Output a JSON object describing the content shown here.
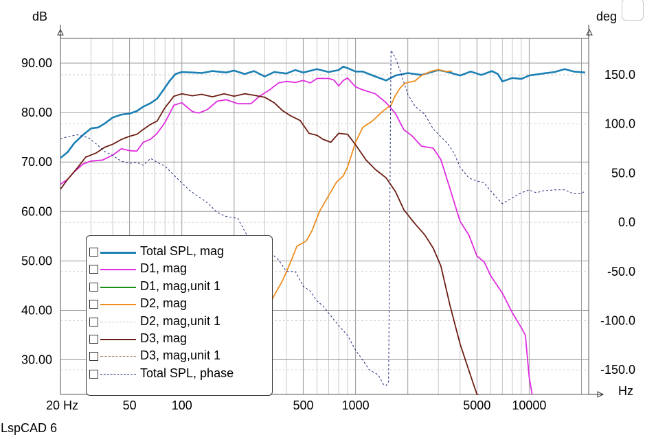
{
  "window": {
    "footer_text": "LspCAD 6"
  },
  "chart_data": {
    "type": "line",
    "xscale": "log",
    "xlim": [
      20,
      22000
    ],
    "ylim_left": [
      23,
      95
    ],
    "ylim_right": [
      -175,
      187
    ],
    "left_unit": "dB",
    "right_unit": "deg",
    "x_unit": "Hz",
    "x_ticks": [
      {
        "value": 20,
        "label": "20 Hz"
      },
      {
        "value": 50,
        "label": "50"
      },
      {
        "value": 100,
        "label": "100"
      },
      {
        "value": 500,
        "label": "500"
      },
      {
        "value": 1000,
        "label": "1000"
      },
      {
        "value": 5000,
        "label": "5000"
      },
      {
        "value": 10000,
        "label": "10000"
      }
    ],
    "y_ticks_left": [
      {
        "value": 90,
        "label": "90.00"
      },
      {
        "value": 80,
        "label": "80.00"
      },
      {
        "value": 70,
        "label": "70.00"
      },
      {
        "value": 60,
        "label": "60.00"
      },
      {
        "value": 50,
        "label": "50.00"
      },
      {
        "value": 40,
        "label": "40.00"
      },
      {
        "value": 30,
        "label": "30.00"
      }
    ],
    "y_ticks_right": [
      {
        "value": 150,
        "label": "150.0"
      },
      {
        "value": 100,
        "label": "100.0"
      },
      {
        "value": 50,
        "label": "50.0"
      },
      {
        "value": 0,
        "label": "0.0"
      },
      {
        "value": -50,
        "label": "-50.0"
      },
      {
        "value": -100,
        "label": "-100.0"
      },
      {
        "value": -150,
        "label": "-150.0"
      }
    ],
    "grid": true,
    "legend_position": "bottom-left",
    "series": [
      {
        "name": "Total SPL, mag",
        "color": "#1b7fb3",
        "style": "solid",
        "axis": "left",
        "width": 2.6,
        "points": [
          [
            20,
            70.8
          ],
          [
            22,
            72
          ],
          [
            24,
            73.8
          ],
          [
            27,
            75.5
          ],
          [
            30,
            76.8
          ],
          [
            33,
            77
          ],
          [
            36,
            77.8
          ],
          [
            40,
            79
          ],
          [
            45,
            79.6
          ],
          [
            50,
            79.8
          ],
          [
            55,
            80.3
          ],
          [
            60,
            81.2
          ],
          [
            66,
            81.9
          ],
          [
            72,
            82.8
          ],
          [
            78,
            84.5
          ],
          [
            85,
            86.4
          ],
          [
            92,
            87.8
          ],
          [
            100,
            88.2
          ],
          [
            115,
            88.1
          ],
          [
            130,
            88
          ],
          [
            150,
            88.4
          ],
          [
            180,
            88.1
          ],
          [
            200,
            88.5
          ],
          [
            230,
            87.8
          ],
          [
            260,
            88.4
          ],
          [
            300,
            87.3
          ],
          [
            340,
            88.2
          ],
          [
            400,
            87.9
          ],
          [
            450,
            88.6
          ],
          [
            500,
            88.1
          ],
          [
            600,
            88.8
          ],
          [
            700,
            88.2
          ],
          [
            800,
            88.6
          ],
          [
            850,
            89.3
          ],
          [
            900,
            89
          ],
          [
            1000,
            88.3
          ],
          [
            1100,
            88.3
          ],
          [
            1300,
            87.3
          ],
          [
            1500,
            86.5
          ],
          [
            1700,
            87.5
          ],
          [
            2000,
            88
          ],
          [
            2400,
            87.6
          ],
          [
            3000,
            88.6
          ],
          [
            3400,
            88.2
          ],
          [
            4000,
            87.5
          ],
          [
            4600,
            88.3
          ],
          [
            5300,
            87.6
          ],
          [
            6100,
            88.4
          ],
          [
            6600,
            87.8
          ],
          [
            7000,
            86.3
          ],
          [
            8000,
            87
          ],
          [
            9000,
            86.8
          ],
          [
            10000,
            87.5
          ],
          [
            12000,
            87.9
          ],
          [
            14000,
            88.2
          ],
          [
            16000,
            88.8
          ],
          [
            18000,
            88.3
          ],
          [
            21000,
            88.1
          ]
        ]
      },
      {
        "name": "D1, mag",
        "color": "#e02be0",
        "style": "solid",
        "axis": "left",
        "width": 1.8,
        "points": [
          [
            20,
            65.5
          ],
          [
            22,
            66.5
          ],
          [
            24,
            68
          ],
          [
            27,
            69.6
          ],
          [
            30,
            70.2
          ],
          [
            35,
            70.4
          ],
          [
            40,
            71.4
          ],
          [
            45,
            72.7
          ],
          [
            50,
            72.3
          ],
          [
            55,
            72.2
          ],
          [
            60,
            74
          ],
          [
            66,
            74.6
          ],
          [
            72,
            75.8
          ],
          [
            80,
            78
          ],
          [
            90,
            81.5
          ],
          [
            100,
            82
          ],
          [
            115,
            80.2
          ],
          [
            125,
            79.9
          ],
          [
            140,
            80.6
          ],
          [
            160,
            82.3
          ],
          [
            180,
            82.6
          ],
          [
            210,
            81.8
          ],
          [
            250,
            81.8
          ],
          [
            280,
            83.3
          ],
          [
            320,
            84.6
          ],
          [
            360,
            86
          ],
          [
            400,
            86.3
          ],
          [
            450,
            86.1
          ],
          [
            500,
            86.5
          ],
          [
            550,
            86
          ],
          [
            600,
            86.9
          ],
          [
            700,
            86.9
          ],
          [
            750,
            86.6
          ],
          [
            800,
            85.4
          ],
          [
            850,
            86.5
          ],
          [
            900,
            87
          ],
          [
            1000,
            85.2
          ],
          [
            1100,
            84.6
          ],
          [
            1300,
            83.8
          ],
          [
            1500,
            82
          ],
          [
            1700,
            79.8
          ],
          [
            1900,
            76.5
          ],
          [
            2100,
            75.4
          ],
          [
            2400,
            73.2
          ],
          [
            2800,
            72.8
          ],
          [
            3100,
            70.5
          ],
          [
            3500,
            64.6
          ],
          [
            4000,
            58
          ],
          [
            4500,
            55.2
          ],
          [
            5000,
            51
          ],
          [
            5500,
            49.8
          ],
          [
            6000,
            47
          ],
          [
            7000,
            43.5
          ],
          [
            8000,
            39.5
          ],
          [
            9000,
            36.5
          ],
          [
            9500,
            35
          ],
          [
            10000,
            26.5
          ],
          [
            10400,
            22
          ]
        ]
      },
      {
        "name": "D1, mag,unit 1",
        "color": "#1a8c1a",
        "style": "solid",
        "axis": "left",
        "width": 1.5,
        "points": []
      },
      {
        "name": "D2, mag",
        "color": "#ee8c1c",
        "style": "solid",
        "axis": "left",
        "width": 1.8,
        "points": [
          [
            260,
            35
          ],
          [
            300,
            39
          ],
          [
            340,
            43
          ],
          [
            380,
            46
          ],
          [
            420,
            49.5
          ],
          [
            460,
            53
          ],
          [
            520,
            54
          ],
          [
            560,
            56
          ],
          [
            620,
            60
          ],
          [
            700,
            63.2
          ],
          [
            780,
            66
          ],
          [
            850,
            67.2
          ],
          [
            900,
            69
          ],
          [
            1000,
            74
          ],
          [
            1100,
            77
          ],
          [
            1250,
            78.3
          ],
          [
            1450,
            80.4
          ],
          [
            1600,
            81.5
          ],
          [
            1700,
            83.5
          ],
          [
            1800,
            84.9
          ],
          [
            1900,
            85.8
          ],
          [
            2000,
            86.1
          ],
          [
            2200,
            86.4
          ],
          [
            2400,
            87.5
          ],
          [
            2700,
            88.3
          ],
          [
            3000,
            88.7
          ],
          [
            3300,
            88.3
          ],
          [
            3600,
            88.4
          ]
        ]
      },
      {
        "name": "D2, mag,unit 1",
        "color": "#bbbbbb",
        "style": "dotted",
        "axis": "left",
        "width": 1,
        "points": []
      },
      {
        "name": "D3, mag",
        "color": "#6b1c12",
        "style": "solid",
        "axis": "left",
        "width": 1.8,
        "points": [
          [
            20,
            64.5
          ],
          [
            22,
            66.5
          ],
          [
            25,
            68.8
          ],
          [
            28,
            71
          ],
          [
            32,
            71.8
          ],
          [
            36,
            73
          ],
          [
            40,
            73.6
          ],
          [
            45,
            74.6
          ],
          [
            50,
            75.2
          ],
          [
            55,
            75.6
          ],
          [
            60,
            76.6
          ],
          [
            66,
            77.6
          ],
          [
            72,
            78.3
          ],
          [
            80,
            81
          ],
          [
            90,
            83.3
          ],
          [
            100,
            83.8
          ],
          [
            115,
            83.4
          ],
          [
            130,
            83.7
          ],
          [
            150,
            83.2
          ],
          [
            175,
            83.8
          ],
          [
            200,
            83.3
          ],
          [
            230,
            83.8
          ],
          [
            260,
            83.5
          ],
          [
            300,
            83.1
          ],
          [
            340,
            82
          ],
          [
            380,
            80.4
          ],
          [
            420,
            79.4
          ],
          [
            480,
            78.4
          ],
          [
            540,
            75.8
          ],
          [
            600,
            75.4
          ],
          [
            650,
            74.6
          ],
          [
            720,
            74
          ],
          [
            800,
            75.8
          ],
          [
            900,
            75.6
          ],
          [
            1000,
            73.5
          ],
          [
            1150,
            70.4
          ],
          [
            1300,
            68.5
          ],
          [
            1500,
            66.8
          ],
          [
            1700,
            64
          ],
          [
            1900,
            60.3
          ],
          [
            2200,
            57.5
          ],
          [
            2500,
            55.3
          ],
          [
            2800,
            52.6
          ],
          [
            3100,
            49
          ],
          [
            3500,
            41
          ],
          [
            4000,
            33.2
          ],
          [
            4500,
            27.8
          ],
          [
            5000,
            22.8
          ],
          [
            5100,
            22
          ]
        ]
      },
      {
        "name": "D3, mag,unit 1",
        "color": "#8b5a3c",
        "style": "dotted",
        "axis": "left",
        "width": 1,
        "points": []
      },
      {
        "name": "Total SPL, phase",
        "color": "#1e2a7a",
        "style": "dashed",
        "axis": "right",
        "width": 1,
        "points": [
          [
            20,
            85
          ],
          [
            22,
            87
          ],
          [
            25,
            89
          ],
          [
            29,
            86
          ],
          [
            32,
            80
          ],
          [
            36,
            72
          ],
          [
            40,
            68
          ],
          [
            45,
            62
          ],
          [
            50,
            60
          ],
          [
            55,
            61
          ],
          [
            60,
            58
          ],
          [
            66,
            65
          ],
          [
            72,
            61
          ],
          [
            80,
            57
          ],
          [
            90,
            48
          ],
          [
            100,
            40
          ],
          [
            110,
            33
          ],
          [
            120,
            28
          ],
          [
            140,
            20
          ],
          [
            160,
            10
          ],
          [
            180,
            6
          ],
          [
            210,
            4
          ],
          [
            240,
            -15
          ],
          [
            270,
            -22
          ],
          [
            310,
            -28
          ],
          [
            360,
            -38
          ],
          [
            400,
            -50
          ],
          [
            450,
            -50
          ],
          [
            500,
            -65
          ],
          [
            550,
            -70
          ],
          [
            600,
            -80
          ],
          [
            650,
            -85
          ],
          [
            720,
            -95
          ],
          [
            800,
            -105
          ],
          [
            900,
            -115
          ],
          [
            1000,
            -130
          ],
          [
            1100,
            -140
          ],
          [
            1200,
            -150
          ],
          [
            1350,
            -155
          ],
          [
            1450,
            -165
          ],
          [
            1500,
            -166
          ],
          [
            1550,
            -162
          ],
          [
            1600,
            175
          ],
          [
            1700,
            167
          ],
          [
            1800,
            155
          ],
          [
            2000,
            130
          ],
          [
            2200,
            118
          ],
          [
            2500,
            110
          ],
          [
            2800,
            95
          ],
          [
            3100,
            87
          ],
          [
            3400,
            80
          ],
          [
            3700,
            70
          ],
          [
            4000,
            56
          ],
          [
            4500,
            45
          ],
          [
            5000,
            42
          ],
          [
            5500,
            40
          ],
          [
            6000,
            32
          ],
          [
            6500,
            25
          ],
          [
            7000,
            19
          ],
          [
            8000,
            25
          ],
          [
            9000,
            30
          ],
          [
            10000,
            33
          ],
          [
            11000,
            30
          ],
          [
            12000,
            32
          ],
          [
            14000,
            33
          ],
          [
            16000,
            33
          ],
          [
            18000,
            29
          ],
          [
            20000,
            29
          ],
          [
            21000,
            32
          ]
        ]
      }
    ]
  }
}
